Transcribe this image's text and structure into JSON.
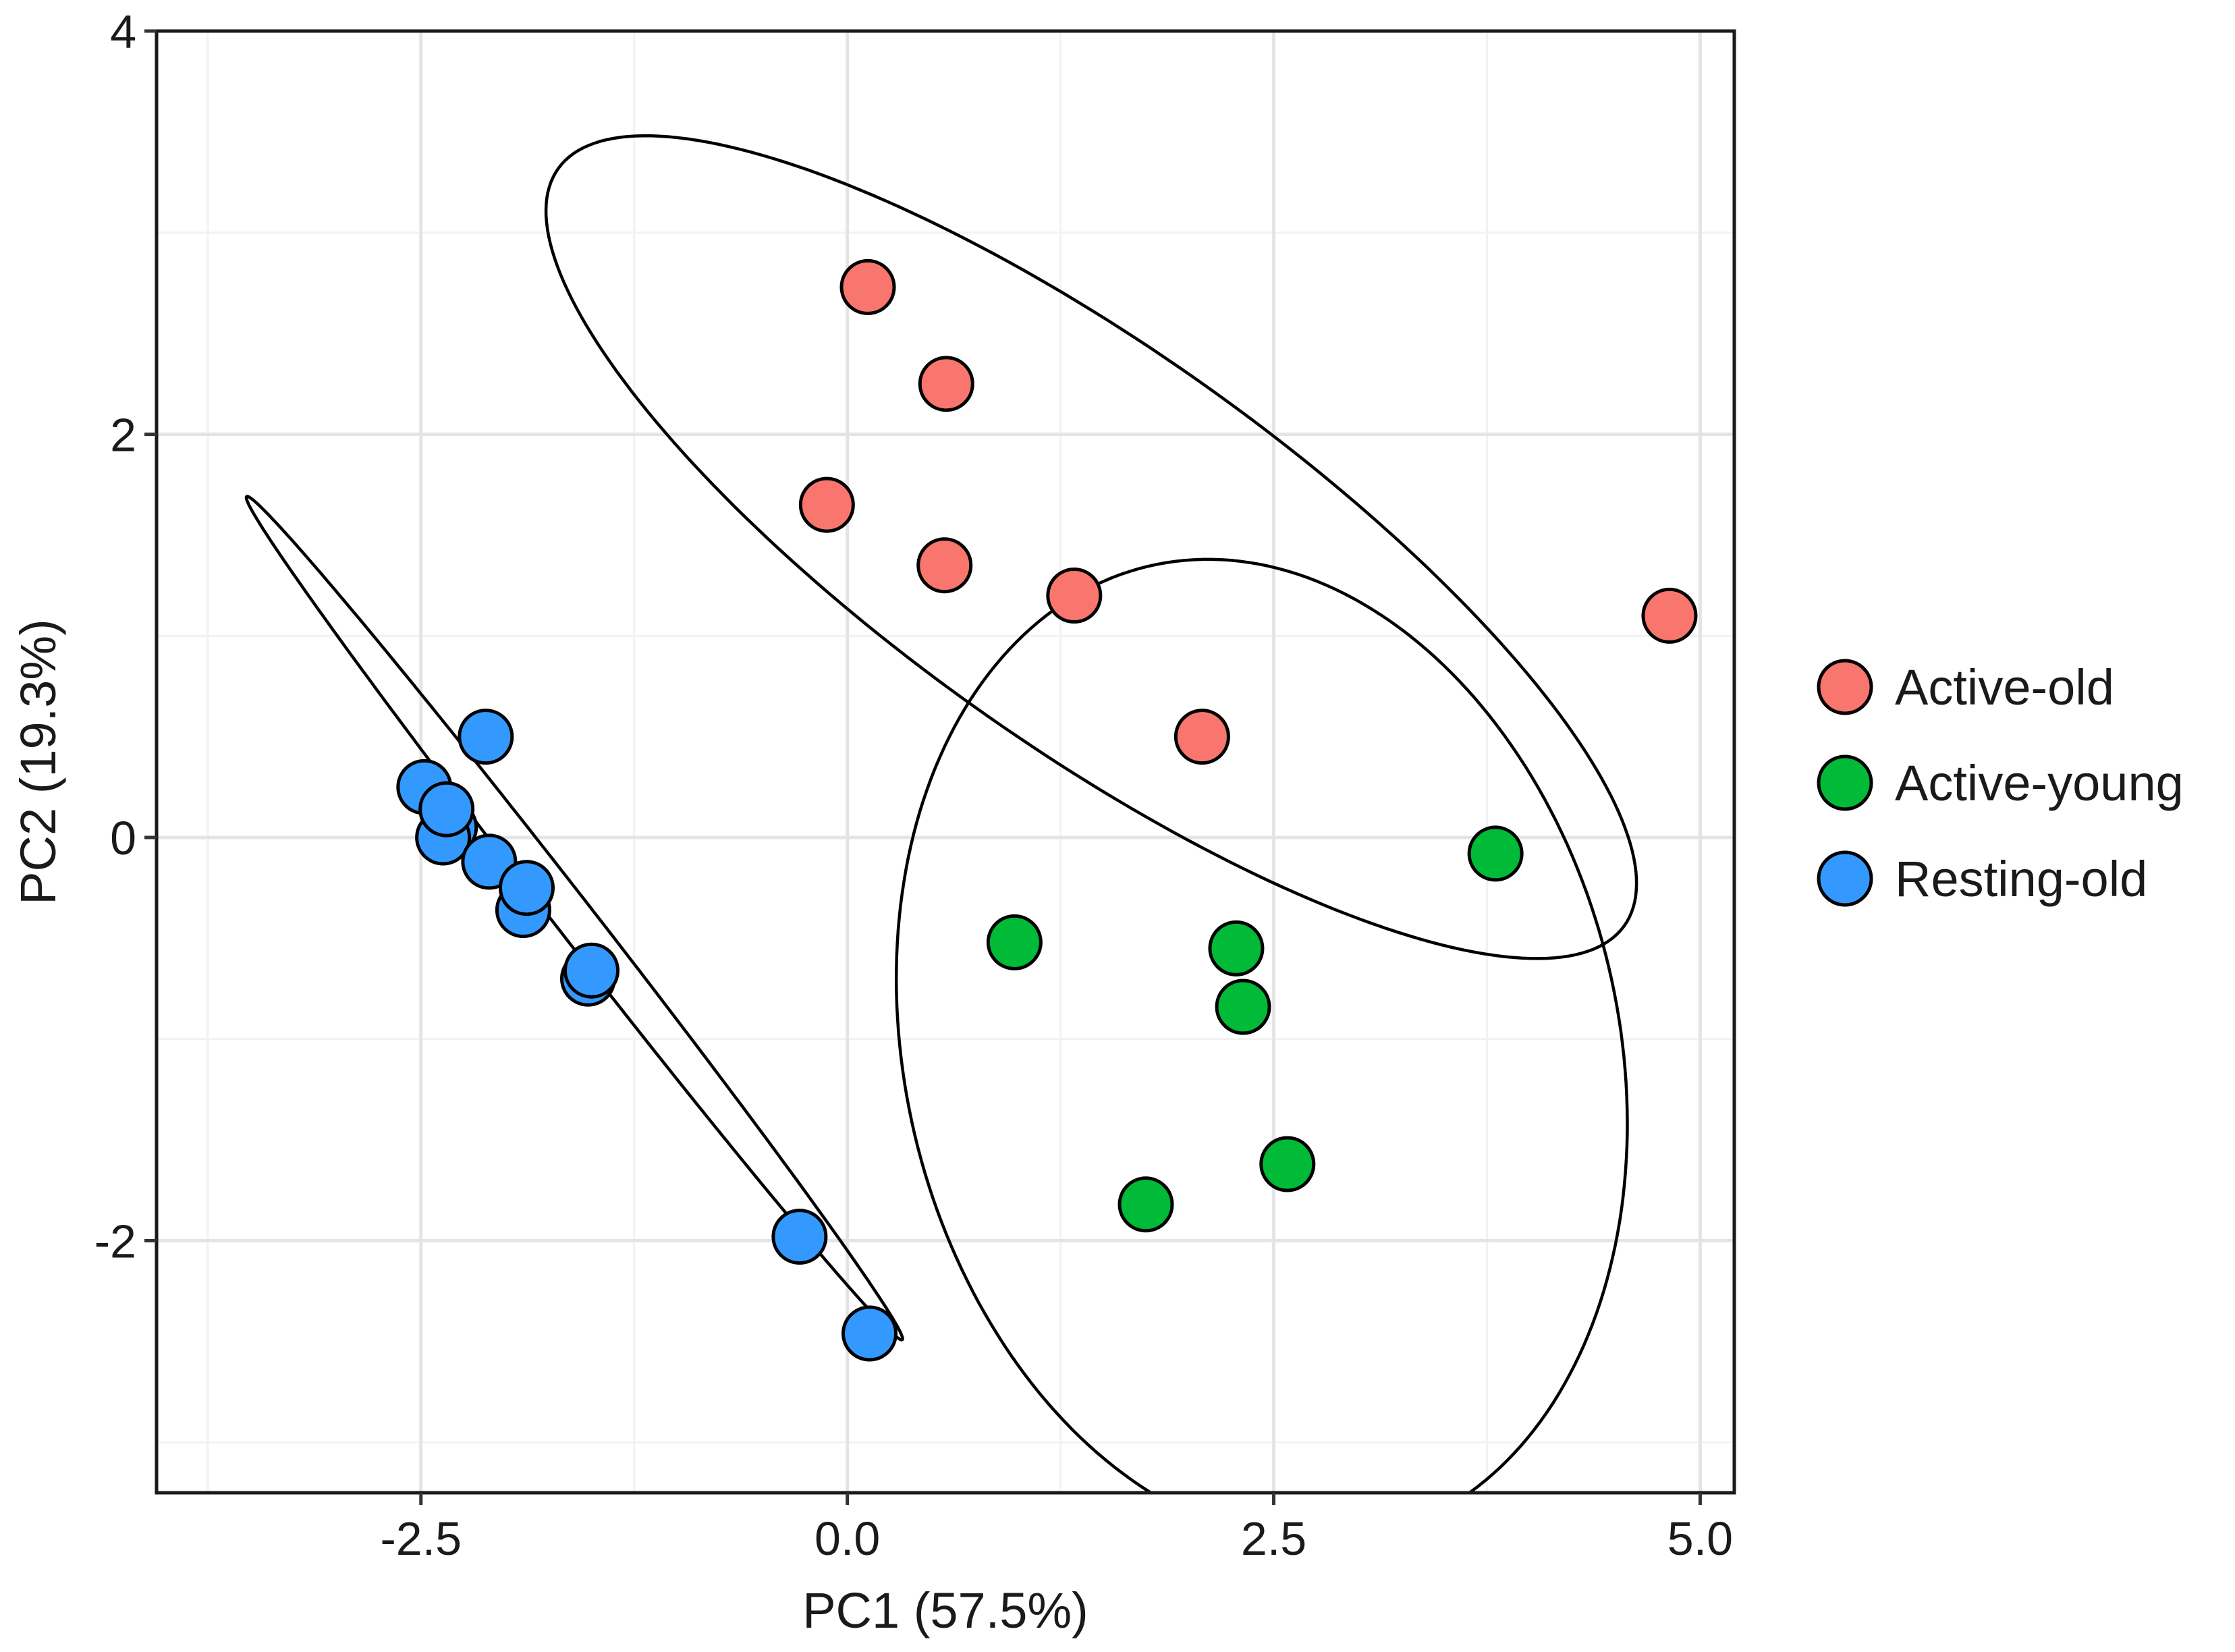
{
  "chart_data": {
    "type": "scatter",
    "title": "",
    "xlabel": "PC1 (57.5%)",
    "ylabel": "PC2 (19.3%)",
    "xlim": [
      -4.05,
      5.2
    ],
    "ylim": [
      -3.25,
      4.0
    ],
    "x_ticks": [
      -2.5,
      0.0,
      2.5,
      5.0
    ],
    "x_tick_labels": [
      "-2.5",
      "0.0",
      "2.5",
      "5.0"
    ],
    "y_ticks": [
      -2,
      0,
      2,
      4
    ],
    "y_tick_labels": [
      "-2",
      "0",
      "2",
      "4"
    ],
    "grid": true,
    "legend_position": "right",
    "series": [
      {
        "name": "Active-old",
        "color": "#F8766D",
        "points": [
          {
            "x": 0.12,
            "y": 2.73
          },
          {
            "x": 0.58,
            "y": 2.25
          },
          {
            "x": -0.12,
            "y": 1.65
          },
          {
            "x": 0.57,
            "y": 1.35
          },
          {
            "x": 1.33,
            "y": 1.2
          },
          {
            "x": 2.08,
            "y": 0.5
          },
          {
            "x": 4.82,
            "y": 1.1
          }
        ],
        "ellipse": {
          "cx": 1.43,
          "cy": 1.44,
          "rx": 3.65,
          "ry": 1.03,
          "angle_deg": -30.2
        }
      },
      {
        "name": "Active-young",
        "color": "#00BA38",
        "points": [
          {
            "x": 0.98,
            "y": -0.52
          },
          {
            "x": 2.28,
            "y": -0.55
          },
          {
            "x": 2.32,
            "y": -0.84
          },
          {
            "x": 3.8,
            "y": -0.08
          },
          {
            "x": 2.58,
            "y": -1.62
          },
          {
            "x": 1.75,
            "y": -1.82
          }
        ],
        "ellipse": {
          "cx": 2.43,
          "cy": -1.06,
          "rx": 2.06,
          "ry": 2.51,
          "angle_deg": 24.3
        }
      },
      {
        "name": "Resting-old",
        "color": "#3399FF",
        "points": [
          {
            "x": -2.12,
            "y": 0.5
          },
          {
            "x": -2.48,
            "y": 0.25
          },
          {
            "x": -2.33,
            "y": 0.05
          },
          {
            "x": -2.37,
            "y": 0.0
          },
          {
            "x": -2.35,
            "y": 0.14
          },
          {
            "x": -2.1,
            "y": -0.12
          },
          {
            "x": -1.9,
            "y": -0.36
          },
          {
            "x": -1.88,
            "y": -0.25
          },
          {
            "x": -1.52,
            "y": -0.7
          },
          {
            "x": -1.5,
            "y": -0.66
          },
          {
            "x": -0.28,
            "y": -1.98
          },
          {
            "x": 0.13,
            "y": -2.46
          }
        ],
        "ellipse": {
          "cx": -1.6,
          "cy": -0.4,
          "rx": 2.84,
          "ry": 0.105,
          "angle_deg": -47.4
        }
      }
    ]
  }
}
